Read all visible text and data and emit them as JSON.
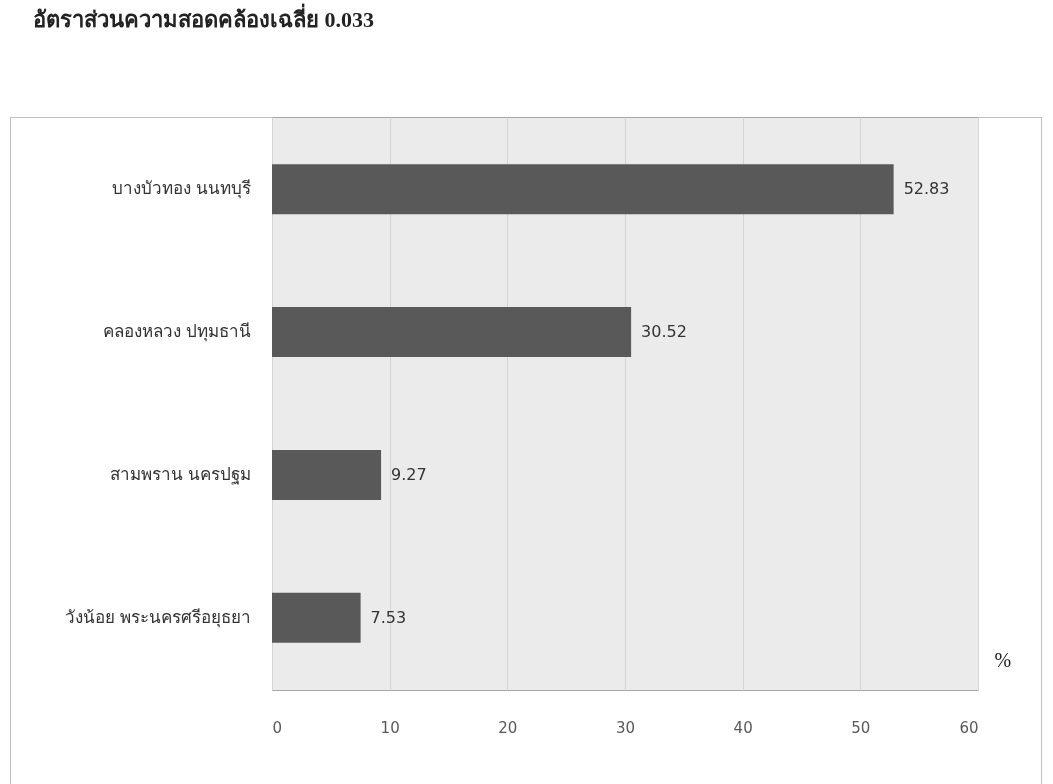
{
  "chart_data": {
    "type": "bar",
    "orientation": "horizontal",
    "title": "อัตราส่วนความสอดคล้องเฉลี่ย  0.033",
    "xlabel": "%",
    "categories": [
      "บางบัวทอง นนทบุรี",
      "คลองหลวง ปทุมธานี",
      "สามพราน นครปฐม",
      "วังน้อย พระนครศรีอยุธยา"
    ],
    "values": [
      52.83,
      30.52,
      9.27,
      7.53
    ],
    "color": "#595959",
    "xlim": [
      0,
      60
    ],
    "xticks": [
      0,
      10,
      20,
      30,
      40,
      50,
      60
    ],
    "grid": "x",
    "data_labels": true
  }
}
